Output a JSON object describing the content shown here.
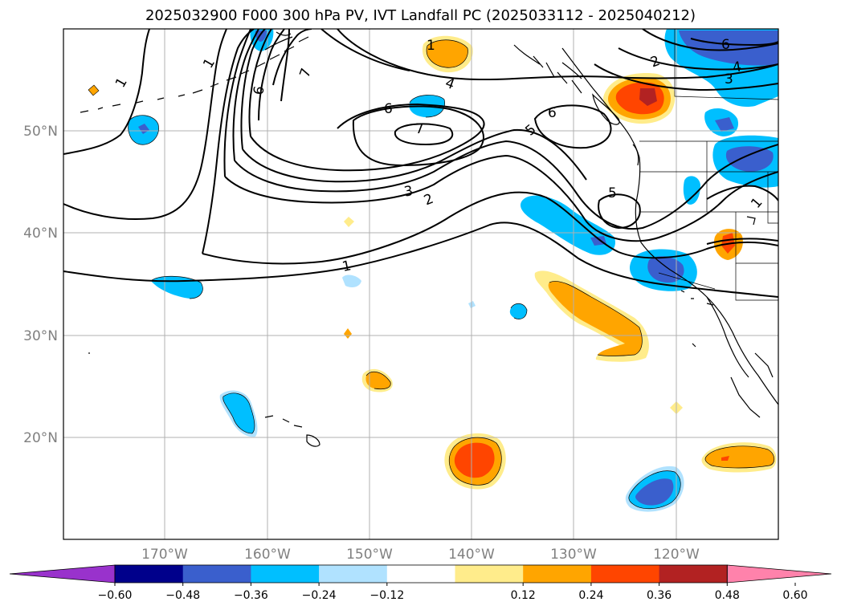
{
  "title": "2025032900 F000 300 hPa PV, IVT Landfall PC (2025033112 - 2025040212)",
  "lat_labels": [
    "50°N",
    "40°N",
    "30°N",
    "20°N"
  ],
  "lon_labels": [
    "170°W",
    "160°W",
    "150°W",
    "140°W",
    "130°W",
    "120°W"
  ],
  "colorbar": {
    "ticks": [
      "−0.60",
      "−0.48",
      "−0.36",
      "−0.24",
      "−0.12",
      "0.12",
      "0.24",
      "0.36",
      "0.48",
      "0.60"
    ],
    "colors": [
      "#9932cc",
      "#00008b",
      "#3a5fcd",
      "#00bfff",
      "#b0e2ff",
      "#ffffff",
      "#ffec8b",
      "#ffa500",
      "#ff4500",
      "#b22222",
      "#ff82ab"
    ]
  },
  "contour_labels": [
    "1",
    "1",
    "2",
    "3",
    "4",
    "5",
    "5",
    "6",
    "6",
    "6",
    "7",
    "7",
    "1",
    "2",
    "3",
    "4",
    "6",
    "1",
    "1"
  ]
}
